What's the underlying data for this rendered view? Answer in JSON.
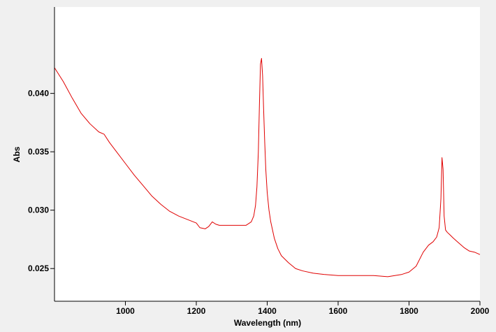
{
  "chart_data": {
    "type": "line",
    "title": "",
    "xlabel": "Wavelength (nm)",
    "ylabel": "Abs",
    "xlim": [
      800,
      2000
    ],
    "ylim": [
      0.0222,
      0.0474
    ],
    "xticks": [
      1000,
      1200,
      1400,
      1600,
      1800,
      2000
    ],
    "yticks": [
      0.025,
      0.03,
      0.035,
      0.04
    ],
    "xtick_labels": [
      "1000",
      "1200",
      "1400",
      "1600",
      "1800",
      "2000"
    ],
    "ytick_labels": [
      "0.025",
      "0.030",
      "0.035",
      "0.040"
    ],
    "grid": false,
    "legend": "none",
    "colors": {
      "line": "#e00000",
      "plot_bg": "#ffffff",
      "frame_bg": "#f0f0f0",
      "axis": "#000000"
    },
    "series": [
      {
        "x": [
          800,
          825,
          850,
          875,
          900,
          925,
          940,
          955,
          975,
          1000,
          1025,
          1050,
          1075,
          1100,
          1125,
          1150,
          1175,
          1200,
          1210,
          1225,
          1235,
          1245,
          1255,
          1265,
          1280,
          1300,
          1320,
          1340,
          1355,
          1362,
          1367,
          1371,
          1375,
          1378,
          1381,
          1384,
          1387,
          1390,
          1393,
          1396,
          1400,
          1405,
          1410,
          1420,
          1430,
          1440,
          1460,
          1480,
          1500,
          1530,
          1560,
          1600,
          1650,
          1700,
          1740,
          1760,
          1780,
          1800,
          1820,
          1840,
          1855,
          1868,
          1878,
          1885,
          1890,
          1893,
          1896,
          1899,
          1903,
          1908,
          1915,
          1925,
          1940,
          1955,
          1970,
          1985,
          2000
        ],
        "y": [
          0.0422,
          0.041,
          0.0396,
          0.0383,
          0.0374,
          0.0367,
          0.0365,
          0.0358,
          0.035,
          0.034,
          0.033,
          0.0321,
          0.0312,
          0.0305,
          0.0299,
          0.0295,
          0.0292,
          0.0289,
          0.0285,
          0.0284,
          0.0286,
          0.029,
          0.0288,
          0.0287,
          0.0287,
          0.0287,
          0.0287,
          0.0287,
          0.029,
          0.0295,
          0.0304,
          0.032,
          0.035,
          0.039,
          0.0425,
          0.043,
          0.0415,
          0.0385,
          0.0358,
          0.0335,
          0.0315,
          0.03,
          0.029,
          0.0276,
          0.0267,
          0.0261,
          0.0255,
          0.025,
          0.0248,
          0.0246,
          0.0245,
          0.0244,
          0.0244,
          0.0244,
          0.0243,
          0.0244,
          0.0245,
          0.0247,
          0.0252,
          0.0264,
          0.027,
          0.0273,
          0.0277,
          0.0285,
          0.031,
          0.0345,
          0.0335,
          0.0295,
          0.0283,
          0.0281,
          0.0279,
          0.0276,
          0.0272,
          0.0268,
          0.0265,
          0.0264,
          0.0262
        ]
      }
    ]
  }
}
